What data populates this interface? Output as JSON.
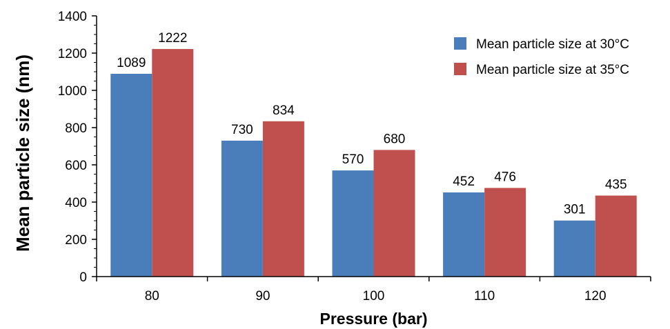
{
  "chart_data": {
    "type": "bar",
    "categories": [
      "80",
      "90",
      "100",
      "110",
      "120"
    ],
    "series": [
      {
        "name": "Mean particle size at 30°C",
        "values": [
          1089,
          730,
          570,
          452,
          301
        ],
        "color": "#4a7ebb"
      },
      {
        "name": "Mean particle size at 35°C",
        "values": [
          1222,
          834,
          680,
          476,
          435
        ],
        "color": "#c0504d"
      }
    ],
    "data_labels": [
      [
        "1089",
        "730",
        "570",
        "452",
        "301"
      ],
      [
        "1222",
        "834",
        "680",
        "476",
        "435"
      ]
    ],
    "title": "",
    "xlabel": "Pressure (bar)",
    "ylabel": "Mean particle size (nm)",
    "ylim": [
      0,
      1400
    ],
    "yticks": [
      0,
      200,
      400,
      600,
      800,
      1000,
      1200,
      1400
    ],
    "ytick_labels": [
      "0",
      "200",
      "400",
      "600",
      "800",
      "1000",
      "1200",
      "1400"
    ],
    "grid": false,
    "legend_position": "top-right"
  }
}
